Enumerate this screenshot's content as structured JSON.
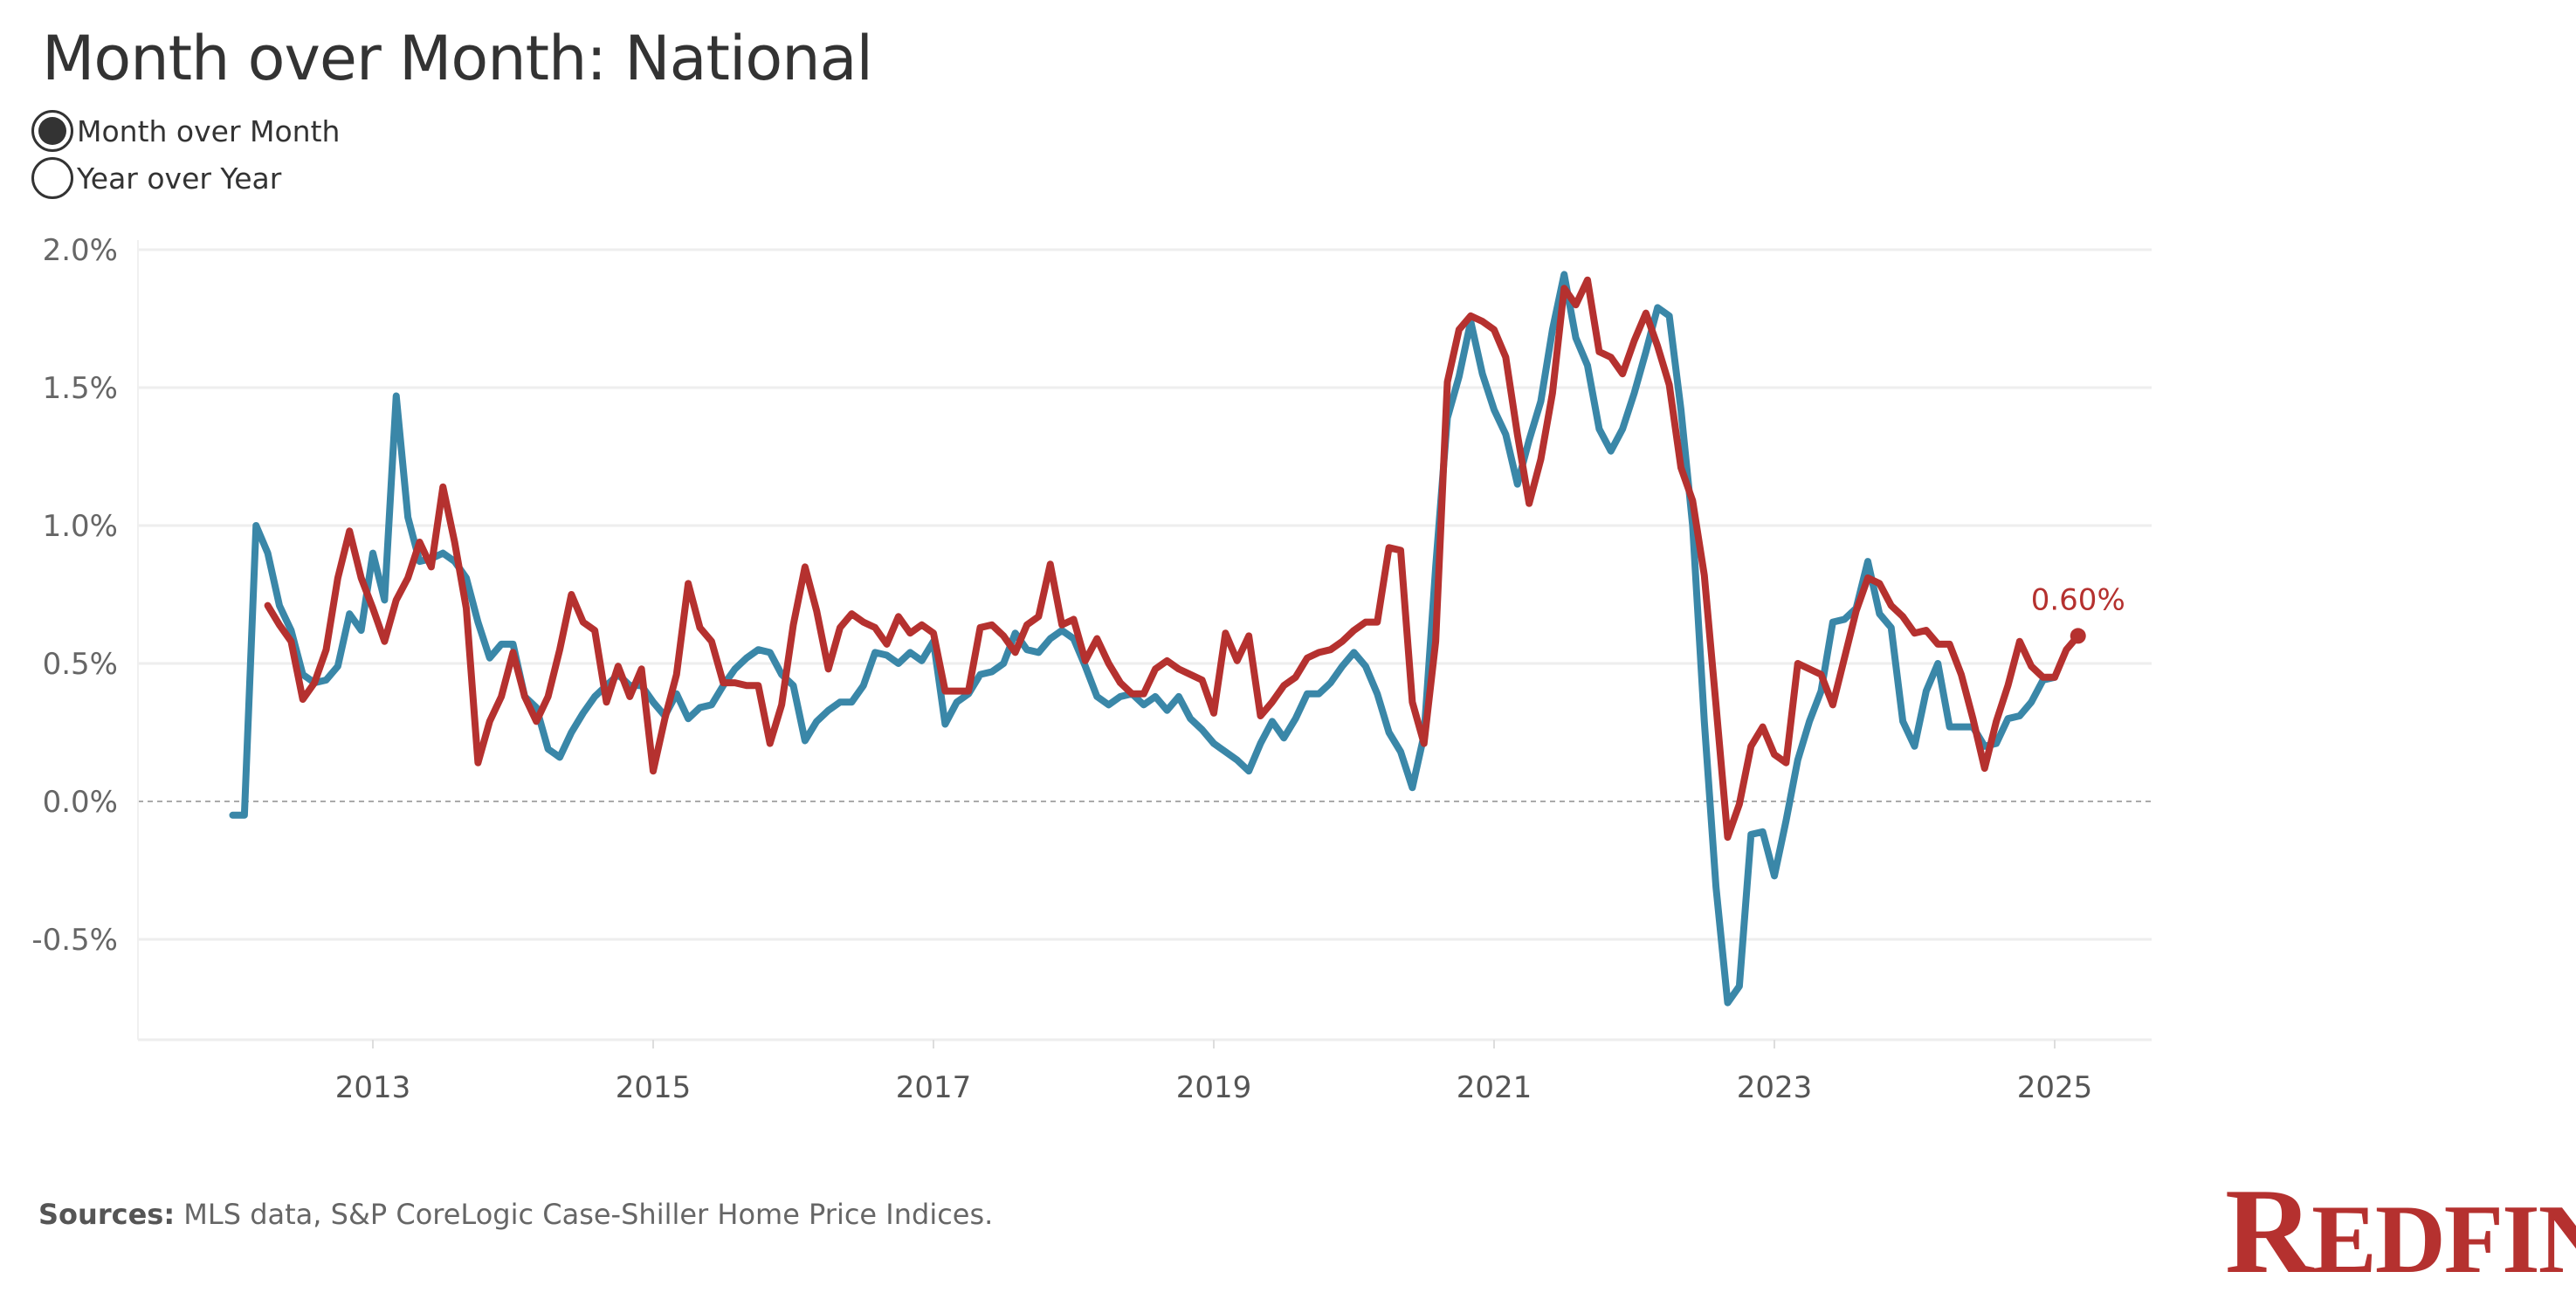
{
  "header": {
    "title": "Month over Month:  National"
  },
  "toggle": {
    "options": [
      {
        "label": "Month over Month",
        "selected": true
      },
      {
        "label": "Year over Year",
        "selected": false
      }
    ]
  },
  "footer": {
    "sources_label": "Sources:",
    "sources_text": " MLS data, S&P CoreLogic Case-Shiller Home Price Indices."
  },
  "logo": {
    "text": "REDFIN"
  },
  "chart_data": {
    "type": "line",
    "xlabel": "",
    "ylabel": "",
    "y_ticks": [
      "2.0%",
      "1.5%",
      "1.0%",
      "0.5%",
      "0.0%",
      "-0.5%"
    ],
    "y_tick_values": [
      2.0,
      1.5,
      1.0,
      0.5,
      0.0,
      -0.5
    ],
    "ylim": [
      -0.85,
      2.1
    ],
    "x_ticks": [
      "2013",
      "2015",
      "2017",
      "2019",
      "2021",
      "2023",
      "2025"
    ],
    "x_tick_values": [
      2013,
      2015,
      2017,
      2019,
      2021,
      2023,
      2025
    ],
    "xlim": [
      2011.5,
      2025.7
    ],
    "grid": "horizontal",
    "zero_line": "dashed",
    "end_label": "0.60%",
    "series": [
      {
        "color": "#3a87a8",
        "start": "2012-01",
        "frequency": "monthly",
        "values": [
          -0.05,
          -0.05,
          1.0,
          0.9,
          0.71,
          0.62,
          0.46,
          0.43,
          0.44,
          0.49,
          0.68,
          0.62,
          0.9,
          0.73,
          1.47,
          1.03,
          0.87,
          0.88,
          0.9,
          0.87,
          0.81,
          0.65,
          0.52,
          0.57,
          0.57,
          0.38,
          0.34,
          0.19,
          0.16,
          0.25,
          0.32,
          0.38,
          0.42,
          0.46,
          0.42,
          0.42,
          0.36,
          0.31,
          0.39,
          0.3,
          0.34,
          0.35,
          0.42,
          0.48,
          0.52,
          0.55,
          0.54,
          0.46,
          0.42,
          0.22,
          0.29,
          0.33,
          0.36,
          0.36,
          0.42,
          0.54,
          0.53,
          0.5,
          0.54,
          0.51,
          0.58,
          0.28,
          0.36,
          0.39,
          0.46,
          0.47,
          0.5,
          0.61,
          0.55,
          0.54,
          0.59,
          0.62,
          0.59,
          0.49,
          0.38,
          0.35,
          0.38,
          0.39,
          0.35,
          0.38,
          0.33,
          0.38,
          0.3,
          0.26,
          0.21,
          0.18,
          0.15,
          0.11,
          0.21,
          0.29,
          0.23,
          0.3,
          0.39,
          0.39,
          0.43,
          0.49,
          0.54,
          0.49,
          0.39,
          0.25,
          0.18,
          0.05,
          0.24,
          0.85,
          1.39,
          1.54,
          1.74,
          1.55,
          1.42,
          1.33,
          1.15,
          1.31,
          1.45,
          1.71,
          1.91,
          1.68,
          1.58,
          1.35,
          1.27,
          1.35,
          1.48,
          1.63,
          1.79,
          1.76,
          1.42,
          1.0,
          0.29,
          -0.31,
          -0.73,
          -0.67,
          -0.12,
          -0.11,
          -0.27,
          -0.07,
          0.15,
          0.29,
          0.4,
          0.65,
          0.66,
          0.7,
          0.87,
          0.68,
          0.63,
          0.29,
          0.2,
          0.4,
          0.5,
          0.27,
          0.27,
          0.27,
          0.2,
          0.21,
          0.3,
          0.31,
          0.36,
          0.44,
          0.45
        ]
      },
      {
        "color": "#b5312f",
        "start": "2012-04",
        "frequency": "monthly",
        "values": [
          0.71,
          0.64,
          0.58,
          0.37,
          0.43,
          0.55,
          0.81,
          0.98,
          0.81,
          0.7,
          0.58,
          0.73,
          0.81,
          0.94,
          0.85,
          1.14,
          0.94,
          0.7,
          0.14,
          0.29,
          0.38,
          0.54,
          0.38,
          0.29,
          0.38,
          0.55,
          0.75,
          0.65,
          0.62,
          0.36,
          0.49,
          0.38,
          0.48,
          0.11,
          0.3,
          0.46,
          0.79,
          0.63,
          0.58,
          0.43,
          0.43,
          0.42,
          0.42,
          0.21,
          0.35,
          0.64,
          0.85,
          0.69,
          0.48,
          0.63,
          0.68,
          0.65,
          0.63,
          0.57,
          0.67,
          0.61,
          0.64,
          0.61,
          0.4,
          0.4,
          0.4,
          0.63,
          0.64,
          0.6,
          0.54,
          0.64,
          0.67,
          0.86,
          0.64,
          0.66,
          0.51,
          0.59,
          0.5,
          0.43,
          0.39,
          0.39,
          0.48,
          0.51,
          0.48,
          0.46,
          0.44,
          0.32,
          0.61,
          0.51,
          0.6,
          0.31,
          0.36,
          0.42,
          0.45,
          0.52,
          0.54,
          0.55,
          0.58,
          0.62,
          0.65,
          0.65,
          0.92,
          0.91,
          0.36,
          0.21,
          0.58,
          1.52,
          1.71,
          1.76,
          1.74,
          1.71,
          1.61,
          1.33,
          1.08,
          1.24,
          1.48,
          1.86,
          1.8,
          1.89,
          1.63,
          1.61,
          1.55,
          1.67,
          1.77,
          1.65,
          1.51,
          1.21,
          1.09,
          0.82,
          0.35,
          -0.13,
          -0.01,
          0.2,
          0.27,
          0.17,
          0.14,
          0.5,
          0.48,
          0.46,
          0.35,
          0.52,
          0.69,
          0.81,
          0.79,
          0.71,
          0.67,
          0.61,
          0.62,
          0.57,
          0.57,
          0.46,
          0.3,
          0.12,
          0.29,
          0.42,
          0.58,
          0.49,
          0.45,
          0.45,
          0.55,
          0.6
        ]
      }
    ]
  }
}
